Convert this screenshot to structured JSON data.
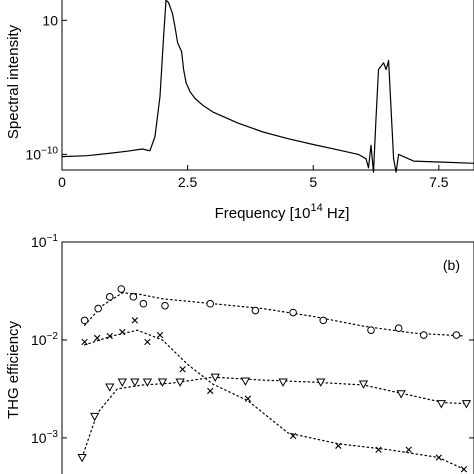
{
  "chart_data": [
    {
      "type": "line",
      "panel": "a",
      "xlabel": "Frequency [10",
      "xlabel_exp": "14",
      "xlabel_unit": " Hz]",
      "ylabel": "Spectral intensity",
      "xlim": [
        0,
        8.2
      ],
      "ylim_log10": [
        -10.35,
        -6.5
      ],
      "x_ticks": [
        0,
        2.5,
        5,
        7.5
      ],
      "x_tick_labels": [
        "0",
        "2.5",
        "5",
        "7.5"
      ],
      "y_tick_labels": [
        {
          "value_log10": -10,
          "base": "10",
          "exp": "−10"
        },
        {
          "value_log10": -7,
          "base": "10",
          "exp": ""
        }
      ],
      "scale": {
        "y": "log"
      },
      "series": [
        {
          "x": [
            0,
            0.5,
            1.0,
            1.3,
            1.6,
            1.75,
            1.85,
            1.95,
            2.02,
            2.07,
            2.12,
            2.2,
            2.25,
            2.3,
            2.38,
            2.42,
            2.47,
            2.55,
            2.65,
            2.8,
            3.0,
            3.5,
            4.0,
            4.5,
            5.0,
            5.5,
            5.9,
            6.05,
            6.1,
            6.15,
            6.2,
            6.25,
            6.3,
            6.4,
            6.45,
            6.5,
            6.55,
            6.6,
            6.65,
            6.7,
            7.0,
            7.5,
            8.2
          ],
          "log10_y": [
            -10.05,
            -10.03,
            -9.97,
            -9.93,
            -9.88,
            -9.92,
            -9.6,
            -8.7,
            -7.4,
            -6.55,
            -6.6,
            -6.85,
            -7.15,
            -7.5,
            -7.7,
            -8.1,
            -8.4,
            -8.6,
            -8.75,
            -8.9,
            -9.05,
            -9.3,
            -9.5,
            -9.65,
            -9.78,
            -9.9,
            -10.0,
            -10.1,
            -10.3,
            -9.8,
            -10.4,
            -9.2,
            -8.1,
            -7.95,
            -8.1,
            -7.9,
            -9.0,
            -10.1,
            -10.4,
            -10.0,
            -10.15,
            -10.17,
            -10.2
          ]
        }
      ]
    },
    {
      "type": "scatter",
      "panel": "b",
      "panel_label": "(b)",
      "ylabel": "THG efficiency",
      "xlim": [
        0,
        8.2
      ],
      "ylim_log10": [
        -3.45,
        -1
      ],
      "y_tick_labels": [
        {
          "value_log10": -1,
          "base": "10",
          "exp": "−1"
        },
        {
          "value_log10": -2,
          "base": "10",
          "exp": "−2"
        },
        {
          "value_log10": -3,
          "base": "10",
          "exp": "−3"
        }
      ],
      "scale": {
        "y": "log"
      },
      "series": [
        {
          "marker": "circle",
          "x": [
            0.45,
            0.72,
            0.95,
            1.18,
            1.42,
            1.62,
            2.05,
            2.95,
            3.85,
            4.6,
            5.2,
            6.15,
            6.7,
            7.2,
            7.85
          ],
          "log10_y": [
            -1.8,
            -1.68,
            -1.56,
            -1.48,
            -1.56,
            -1.63,
            -1.65,
            -1.63,
            -1.7,
            -1.72,
            -1.8,
            -1.9,
            -1.88,
            -1.95,
            -1.95
          ]
        },
        {
          "marker": "x",
          "x": [
            0.45,
            0.7,
            0.95,
            1.2,
            1.45,
            1.7,
            1.95,
            2.4,
            2.95,
            3.7,
            4.6,
            5.5,
            6.3,
            6.9,
            7.5,
            8.0
          ],
          "log10_y": [
            -2.02,
            -1.98,
            -1.96,
            -1.92,
            -1.8,
            -2.02,
            -1.95,
            -2.3,
            -2.52,
            -2.6,
            -2.98,
            -3.08,
            -3.12,
            -3.12,
            -3.2,
            -3.32
          ]
        },
        {
          "marker": "triangle-down",
          "x": [
            0.4,
            0.65,
            0.95,
            1.2,
            1.45,
            1.7,
            2.0,
            2.35,
            3.05,
            3.65,
            4.4,
            5.15,
            6.0,
            6.75,
            7.55,
            8.05
          ],
          "log10_y": [
            -3.2,
            -2.78,
            -2.48,
            -2.43,
            -2.43,
            -2.43,
            -2.43,
            -2.43,
            -2.38,
            -2.42,
            -2.43,
            -2.43,
            -2.45,
            -2.55,
            -2.65,
            -2.65
          ]
        }
      ],
      "trend_lines": [
        {
          "style": "dotted",
          "x": [
            0.45,
            0.8,
            1.2,
            1.5,
            2.0,
            3.0,
            4.0,
            5.0,
            6.0,
            7.0,
            8.0
          ],
          "log10_y": [
            -1.85,
            -1.65,
            -1.52,
            -1.53,
            -1.58,
            -1.63,
            -1.68,
            -1.76,
            -1.86,
            -1.93,
            -1.96
          ]
        },
        {
          "style": "dotted",
          "x": [
            0.45,
            1.0,
            1.5,
            2.0,
            2.5,
            3.0,
            3.7,
            4.5,
            5.5,
            6.5,
            7.5,
            8.0
          ],
          "log10_y": [
            -2.05,
            -1.96,
            -1.9,
            -2.0,
            -2.25,
            -2.45,
            -2.62,
            -2.95,
            -3.06,
            -3.12,
            -3.2,
            -3.32
          ]
        },
        {
          "style": "dotted",
          "x": [
            0.4,
            0.7,
            1.1,
            1.6,
            2.2,
            3.0,
            4.0,
            5.0,
            6.0,
            6.8,
            7.6,
            8.05
          ],
          "log10_y": [
            -3.2,
            -2.75,
            -2.5,
            -2.46,
            -2.44,
            -2.38,
            -2.41,
            -2.43,
            -2.46,
            -2.55,
            -2.64,
            -2.65
          ]
        }
      ]
    }
  ]
}
